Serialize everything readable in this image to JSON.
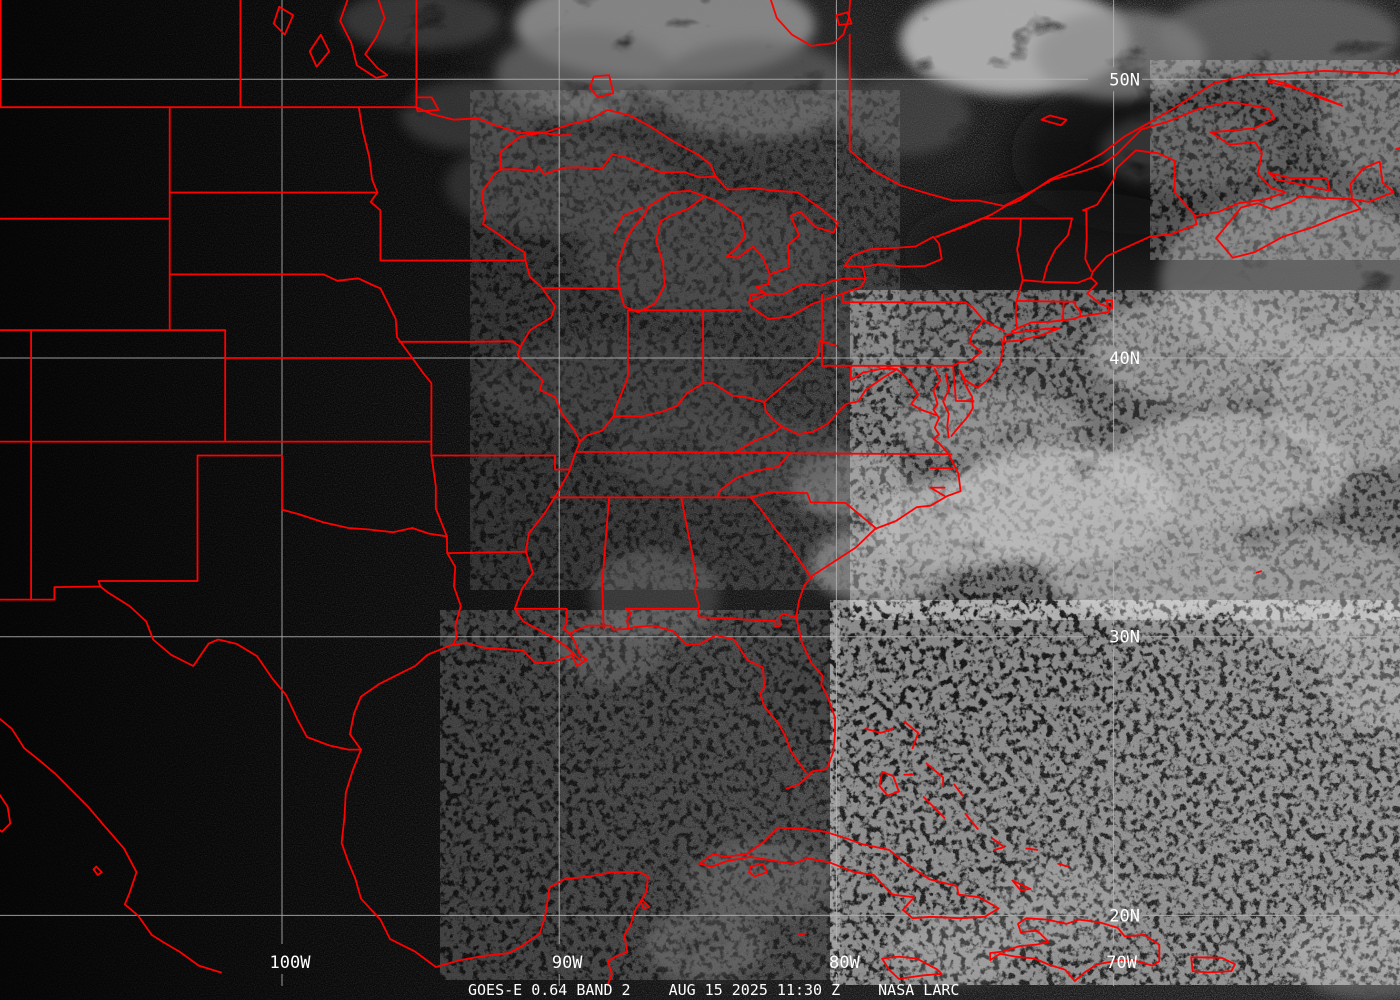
{
  "caption": {
    "instrument": "GOES-E 0.64 BAND 2",
    "datetime": "AUG 15 2025 11:30 Z",
    "credit": "NASA LARC"
  },
  "grid": {
    "line_color": "#b4b4b4",
    "label_color": "#ffffff",
    "latitude_labels": [
      {
        "label": "50N",
        "degrees": 50
      },
      {
        "label": "40N",
        "degrees": 40
      },
      {
        "label": "30N",
        "degrees": 30
      },
      {
        "label": "20N",
        "degrees": 20
      }
    ],
    "longitude_labels": [
      {
        "label": "100W",
        "degrees": -100
      },
      {
        "label": "90W",
        "degrees": -90
      },
      {
        "label": "80W",
        "degrees": -80
      },
      {
        "label": "70W",
        "degrees": -70
      }
    ]
  },
  "overlay": {
    "boundary_color": "#ff0000",
    "description": "state, national and coastline boundaries"
  },
  "image": {
    "background_color": "#000000",
    "caption_text_color": "#ffffff"
  }
}
